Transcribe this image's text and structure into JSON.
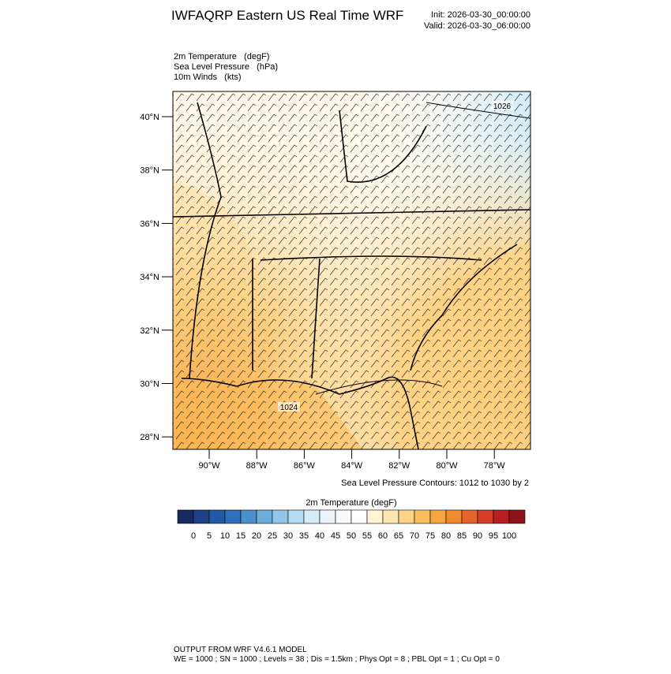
{
  "header": {
    "title": "IWFAQRP Eastern US Real Time WRF",
    "init": "Init: 2026-03-30_00:00:00",
    "valid": "Valid: 2026-03-30_06:00:00"
  },
  "fields": [
    "2m Temperature   (degF)",
    "Sea Level Pressure   (hPa)",
    "10m Winds   (kts)"
  ],
  "map": {
    "lat_labels": [
      "40°N",
      "38°N",
      "36°N",
      "34°N",
      "32°N",
      "30°N",
      "28°N"
    ],
    "lon_labels": [
      "90°W",
      "88°W",
      "86°W",
      "84°W",
      "82°W",
      "80°W",
      "78°W"
    ],
    "contour_labels": [
      "1026",
      "1024"
    ],
    "contour_note": "Sea Level Pressure Contours: 1012 to 1030 by 2"
  },
  "colorbar": {
    "title": "2m Temperature  (degF)",
    "labels": [
      0,
      5,
      10,
      15,
      20,
      25,
      30,
      35,
      40,
      45,
      50,
      55,
      60,
      65,
      70,
      75,
      80,
      85,
      90,
      95,
      100
    ],
    "colors": [
      "#1b2a5e",
      "#1f3f8a",
      "#2357a8",
      "#3070bb",
      "#4b90cc",
      "#6dadd9",
      "#90c7e8",
      "#b3dcf2",
      "#d3ecf8",
      "#e9f5fb",
      "#f6fafd",
      "#ffffff",
      "#fff3d6",
      "#ffe5af",
      "#fdd388",
      "#fbbd5d",
      "#f8a53e",
      "#f28a2e",
      "#e8632a",
      "#d43e27",
      "#b81e22",
      "#8e1219"
    ]
  },
  "footer": [
    "OUTPUT FROM WRF V4.6.1 MODEL",
    "WE = 1000 ; SN = 1000 ; Levels = 38 ; Dis = 1.5km ; Phys Opt = 8 ; PBL Opt = 1 ; Cu Opt = 0"
  ]
}
